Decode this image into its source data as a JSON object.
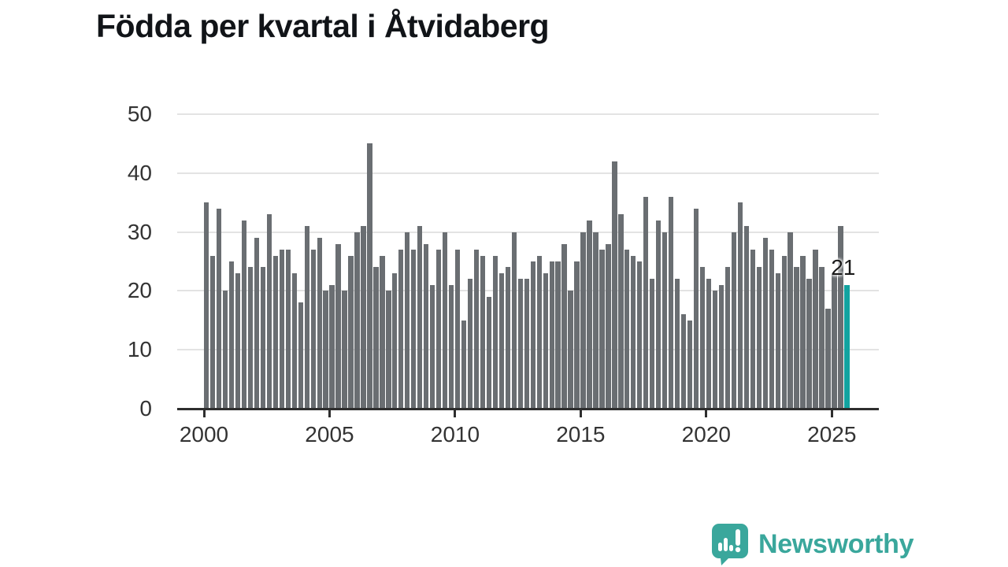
{
  "title": "Födda per kvartal i Åtvidaberg",
  "annotation": {
    "last_value_label": "21"
  },
  "logo": {
    "text": "Newsworthy",
    "icon": "newsworthy-speech-bubble-barchart-icon"
  },
  "colors": {
    "bar": "#6a6e72",
    "accent": "#12a3a0",
    "gridline": "#e3e3e3",
    "axis": "#2e2e2e",
    "title_text": "#111418",
    "tick_text": "#333333",
    "logo_teal": "#3aa79c"
  },
  "chart_data": {
    "type": "bar",
    "title": "Födda per kvartal i Åtvidaberg",
    "xlabel": "",
    "ylabel": "",
    "ylim": [
      0,
      50
    ],
    "y_ticks": [
      0,
      10,
      20,
      30,
      40,
      50
    ],
    "x_tick_years": [
      2000,
      2005,
      2010,
      2015,
      2020,
      2025
    ],
    "grid": "horizontal-only",
    "legend": "none",
    "start_quarter": "2000 Q1",
    "end_quarter": "2025 Q3",
    "quarters_per_year": 4,
    "values": [
      35,
      26,
      34,
      20,
      25,
      23,
      32,
      24,
      29,
      24,
      33,
      26,
      27,
      27,
      23,
      18,
      31,
      27,
      29,
      20,
      21,
      28,
      20,
      26,
      30,
      31,
      45,
      24,
      26,
      20,
      23,
      27,
      30,
      27,
      31,
      28,
      21,
      27,
      30,
      21,
      27,
      15,
      22,
      27,
      26,
      19,
      26,
      23,
      24,
      30,
      22,
      22,
      25,
      26,
      23,
      25,
      25,
      28,
      20,
      25,
      30,
      32,
      30,
      27,
      28,
      42,
      33,
      27,
      26,
      25,
      36,
      22,
      32,
      30,
      36,
      22,
      16,
      15,
      34,
      24,
      22,
      20,
      21,
      24,
      30,
      35,
      31,
      27,
      24,
      29,
      27,
      23,
      26,
      30,
      24,
      26,
      22,
      27,
      24,
      17,
      23,
      31,
      21
    ],
    "highlight_last_bar": {
      "quarter": "2025 Q3",
      "value": 21,
      "label": "21"
    }
  }
}
